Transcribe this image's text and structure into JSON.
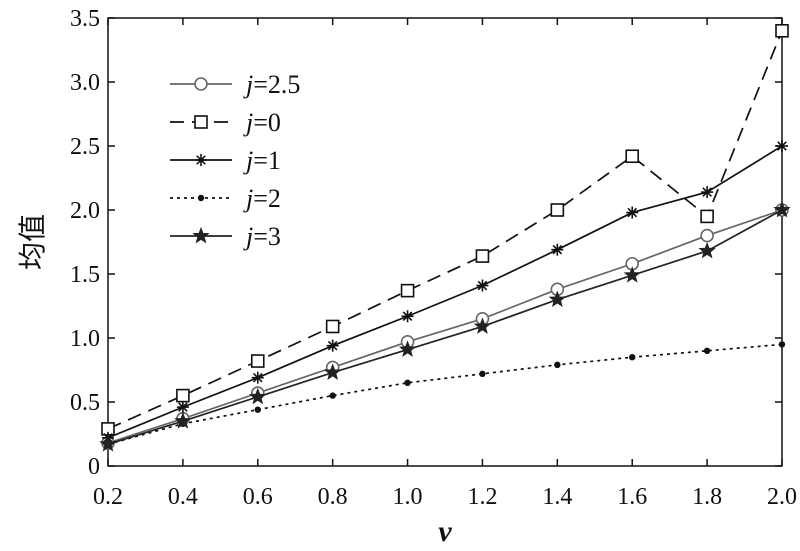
{
  "chart_data": {
    "type": "line",
    "xlabel": "v",
    "ylabel": "均值",
    "xlim": [
      0.2,
      2.0
    ],
    "ylim": [
      0,
      3.5
    ],
    "x": [
      0.2,
      0.4,
      0.6,
      0.8,
      1.0,
      1.2,
      1.4,
      1.6,
      1.8,
      2.0
    ],
    "x_ticks": [
      "0.2",
      "0.4",
      "0.6",
      "0.8",
      "1.0",
      "1.2",
      "1.4",
      "1.6",
      "1.8",
      "2.0"
    ],
    "y_ticks": [
      {
        "value": 0,
        "label": "0"
      },
      {
        "value": 0.5,
        "label": "0.5"
      },
      {
        "value": 1.0,
        "label": "1.0"
      },
      {
        "value": 1.5,
        "label": "1.5"
      },
      {
        "value": 2.0,
        "label": "2.0"
      },
      {
        "value": 2.5,
        "label": "2.5"
      },
      {
        "value": 3.0,
        "label": "3.0"
      },
      {
        "value": 3.5,
        "label": "3.5"
      }
    ],
    "grid": false,
    "legend_position": "top-left",
    "series": [
      {
        "name": "j=2.5",
        "name_var": "j",
        "name_val": "=2.5",
        "marker": "circle",
        "dash": "solid",
        "color": "#666666",
        "values": [
          0.18,
          0.37,
          0.57,
          0.77,
          0.97,
          1.15,
          1.38,
          1.58,
          1.8,
          2.0
        ]
      },
      {
        "name": "j=0",
        "name_var": "j",
        "name_val": "=0",
        "marker": "square",
        "dash": "dashed",
        "color": "#111111",
        "values": [
          0.29,
          0.55,
          0.82,
          1.09,
          1.37,
          1.64,
          2.0,
          2.42,
          1.95,
          3.4
        ]
      },
      {
        "name": "j=1",
        "name_var": "j",
        "name_val": "=1",
        "marker": "asterisk",
        "dash": "solid",
        "color": "#111111",
        "values": [
          0.22,
          0.46,
          0.69,
          0.94,
          1.17,
          1.41,
          1.69,
          1.98,
          2.14,
          2.5
        ]
      },
      {
        "name": "j=2",
        "name_var": "j",
        "name_val": "=2",
        "marker": "dot",
        "dash": "dotted",
        "color": "#111111",
        "values": [
          0.17,
          0.33,
          0.44,
          0.55,
          0.65,
          0.72,
          0.79,
          0.85,
          0.9,
          0.95
        ]
      },
      {
        "name": "j=3",
        "name_var": "j",
        "name_val": "=3",
        "marker": "star",
        "dash": "solid",
        "color": "#222222",
        "values": [
          0.17,
          0.35,
          0.54,
          0.73,
          0.91,
          1.09,
          1.3,
          1.49,
          1.68,
          2.0
        ]
      }
    ]
  }
}
